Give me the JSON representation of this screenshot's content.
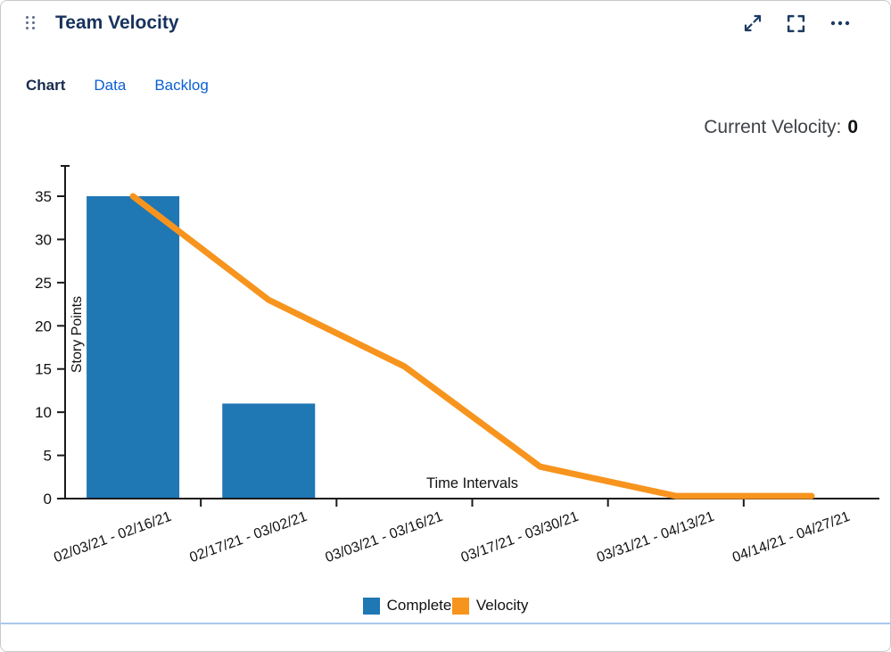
{
  "widget": {
    "title": "Team Velocity",
    "tabs": [
      {
        "label": "Chart",
        "active": true
      },
      {
        "label": "Data",
        "active": false
      },
      {
        "label": "Backlog",
        "active": false
      }
    ],
    "header_icons": [
      {
        "name": "drag-handle-icon"
      },
      {
        "name": "resize-arrows-icon"
      },
      {
        "name": "fullscreen-icon"
      },
      {
        "name": "more-options-icon"
      }
    ],
    "current_velocity": {
      "label": "Current Velocity:",
      "value": "0"
    }
  },
  "chart_data": {
    "type": "bar",
    "title": "",
    "categories": [
      "02/03/21 - 02/16/21",
      "02/17/21 - 03/02/21",
      "03/03/21 - 03/16/21",
      "03/17/21 - 03/30/21",
      "03/31/21 - 04/13/21",
      "04/14/21 - 04/27/21"
    ],
    "series": [
      {
        "name": "Completed",
        "type": "bar",
        "color": "#1f77b4",
        "values": [
          35,
          11,
          0,
          0,
          0,
          0
        ]
      },
      {
        "name": "Velocity",
        "type": "line",
        "color": "#f7941e",
        "values": [
          35,
          23,
          15.3,
          3.7,
          0.3,
          0.3
        ]
      }
    ],
    "xlabel": "Time Intervals",
    "ylabel": "Story Points",
    "ylim": [
      0,
      38.5
    ],
    "yticks": [
      0,
      5,
      10,
      15,
      20,
      25,
      30,
      35
    ],
    "grid": false,
    "legend_position": "bottom"
  },
  "colors": {
    "title": "#17325c",
    "tab_link": "#0b5fd3",
    "axis": "#1a1a1a",
    "divider": "#a9c6ee"
  }
}
